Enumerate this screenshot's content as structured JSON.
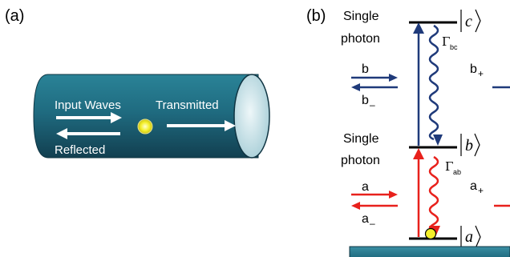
{
  "panel_a": {
    "label": "(a)",
    "input_label": "Input Waves",
    "transmitted_label": "Transmitted",
    "reflected_label": "Reflected"
  },
  "panel_b": {
    "label": "(b)",
    "upper_photon_line1": "Single",
    "upper_photon_line2": "photon",
    "lower_photon_line1": "Single",
    "lower_photon_line2": "photon",
    "level_c": "c",
    "level_b": "b",
    "level_a": "a",
    "gamma_symbol": "Γ",
    "gamma_bc_sub": "bc",
    "gamma_ab_sub": "ab",
    "b_mode": "b",
    "b_minus_base": "b",
    "b_minus_sub": "–",
    "b_plus_base": "b",
    "b_plus_sub": "+",
    "a_mode": "a",
    "a_minus_base": "a",
    "a_minus_sub": "–",
    "a_plus_base": "a",
    "a_plus_sub": "+"
  },
  "colors": {
    "upper_transition": "#1f3a7a",
    "lower_transition": "#e8211c",
    "waveguide": "#1f6b80",
    "atom": "#f4ef2a",
    "level_line": "#000000"
  }
}
